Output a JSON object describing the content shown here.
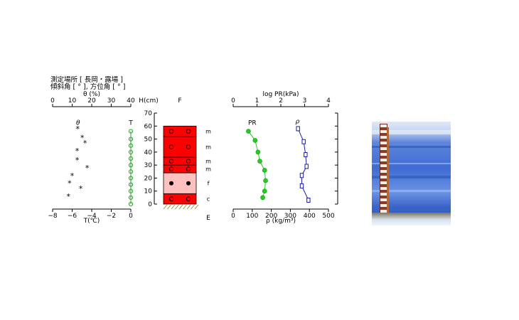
{
  "header": {
    "line1": "測定場所 [ 長岡・露場 ]",
    "line2": "傾斜角 [ ° ], 方位角 [ ° ]"
  },
  "chart_data": [
    {
      "type": "scatter",
      "panel": "temperature-and-water-content",
      "top_axis": {
        "label": "θ (%)",
        "range": [
          0,
          40
        ],
        "ticks": [
          "0",
          "10",
          "20",
          "30",
          "40"
        ]
      },
      "bottom_axis": {
        "label": "T(℃)",
        "range": [
          -8,
          0
        ],
        "ticks": [
          "−8",
          "−6",
          "−4",
          "−2",
          "0"
        ]
      },
      "y_range": [
        0,
        70
      ],
      "series": [
        {
          "name": "θ",
          "marker": "star",
          "color": "#000000",
          "points": [
            {
              "x": 12.8,
              "y": 58
            },
            {
              "x": 15.2,
              "y": 51
            },
            {
              "x": 16.6,
              "y": 47
            },
            {
              "x": 12.6,
              "y": 41
            },
            {
              "x": 17.7,
              "y": 28
            },
            {
              "x": 12.6,
              "y": 34
            },
            {
              "x": 10.0,
              "y": 22
            },
            {
              "x": 14.4,
              "y": 12
            },
            {
              "x": 8.7,
              "y": 16
            },
            {
              "x": 8.1,
              "y": 6
            }
          ]
        },
        {
          "name": "T",
          "marker": "open-circle",
          "color": "#2aa02a",
          "points": [
            {
              "x": 0,
              "y": 56
            },
            {
              "x": 0,
              "y": 50
            },
            {
              "x": 0,
              "y": 45
            },
            {
              "x": 0,
              "y": 40
            },
            {
              "x": 0,
              "y": 35
            },
            {
              "x": 0,
              "y": 30
            },
            {
              "x": 0,
              "y": 25
            },
            {
              "x": 0,
              "y": 20
            },
            {
              "x": 0,
              "y": 15
            },
            {
              "x": 0,
              "y": 10
            },
            {
              "x": 0,
              "y": 5
            },
            {
              "x": 0,
              "y": 0
            }
          ]
        }
      ]
    },
    {
      "type": "table",
      "panel": "stratigraphy",
      "axis": {
        "label": "H(cm)",
        "range": [
          0,
          70
        ],
        "ticks": [
          "0",
          "10",
          "20",
          "30",
          "40",
          "50",
          "60",
          "70"
        ]
      },
      "column_title": "F",
      "bottom_label": "E",
      "layers": [
        {
          "bottom": 52,
          "top": 60,
          "grain": "m",
          "fill": "#ff0000",
          "symbol": "open"
        },
        {
          "bottom": 36,
          "top": 52,
          "grain": "m",
          "fill": "#ff0000",
          "symbol": "open"
        },
        {
          "bottom": 30,
          "top": 36,
          "grain": "m",
          "fill": "#ff0000",
          "symbol": "open"
        },
        {
          "bottom": 24,
          "top": 30,
          "grain": "m",
          "fill": "#ff0000",
          "symbol": "open"
        },
        {
          "bottom": 8,
          "top": 24,
          "grain": "f",
          "fill": "#ffc0c0",
          "symbol": "filled"
        },
        {
          "bottom": 0,
          "top": 8,
          "grain": "c",
          "fill": "#ff0000",
          "symbol": "open"
        }
      ]
    },
    {
      "type": "line",
      "panel": "density-and-hardness",
      "top_axis": {
        "label": "log PR(kPa)",
        "range": [
          0,
          4
        ],
        "ticks": [
          "0",
          "1",
          "2",
          "3",
          "4"
        ]
      },
      "bottom_axis": {
        "label": "ρ (kg/m³)",
        "range": [
          0,
          500
        ],
        "ticks": [
          "0",
          "100",
          "200",
          "300",
          "400",
          "500"
        ]
      },
      "y_range": [
        0,
        70
      ],
      "series": [
        {
          "name": "PR",
          "marker": "filled-circle",
          "color": "#22cc22",
          "points": [
            {
              "x": 80,
              "y": 56
            },
            {
              "x": 115,
              "y": 49
            },
            {
              "x": 130,
              "y": 40
            },
            {
              "x": 140,
              "y": 33
            },
            {
              "x": 165,
              "y": 26
            },
            {
              "x": 170,
              "y": 18
            },
            {
              "x": 165,
              "y": 10
            },
            {
              "x": 155,
              "y": 5
            }
          ]
        },
        {
          "name": "ρ",
          "marker": "open-square",
          "color": "#1a1aa0",
          "points": [
            {
              "x": 340,
              "y": 58
            },
            {
              "x": 370,
              "y": 48
            },
            {
              "x": 380,
              "y": 38
            },
            {
              "x": 385,
              "y": 29
            },
            {
              "x": 360,
              "y": 22
            },
            {
              "x": 360,
              "y": 14
            },
            {
              "x": 395,
              "y": 3
            }
          ]
        }
      ]
    }
  ]
}
